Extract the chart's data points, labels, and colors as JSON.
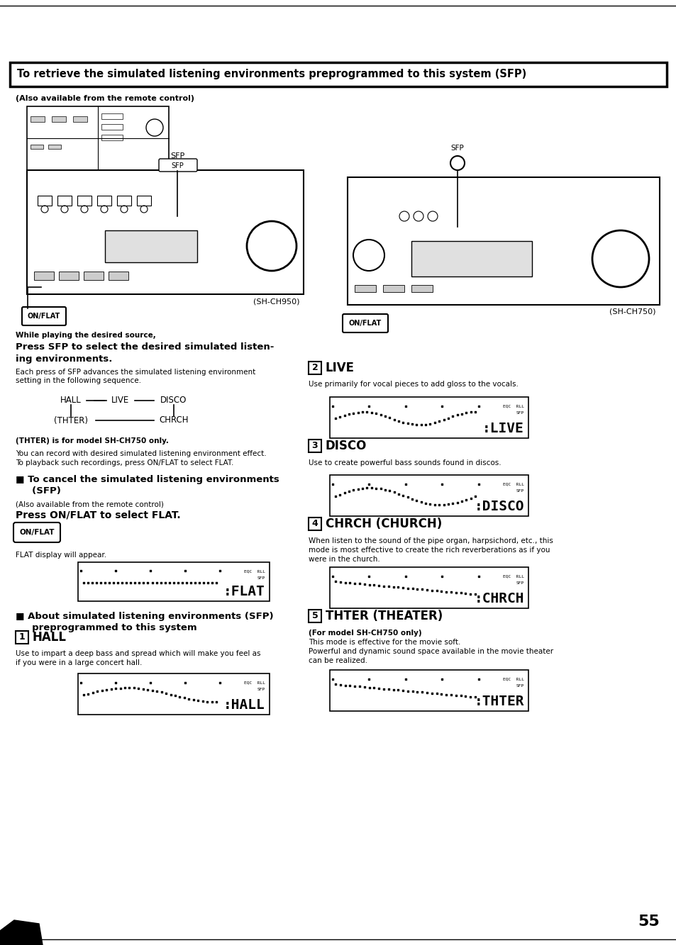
{
  "bg_color": "#ffffff",
  "page_number": "55",
  "header_box_text": "To retrieve the simulated listening environments preprogrammed to this system (SFP)",
  "also_remote": "(Also available from the remote control)",
  "while_playing": "While playing the desired source,",
  "press_sfp_line1": "Press SFP to select the desired simulated listen-",
  "press_sfp_line2": "ing environments.",
  "each_press_text": "Each press of SFP advances the simulated listening environment\nsetting in the following sequence.",
  "thter_note": "(THTER) is for model SH-CH750 only.",
  "record_note1": "You can record with desired simulated listening environment effect.",
  "record_note2": "To playback such recordings, press ON/FLAT to select FLAT.",
  "cancel_bold1": "■ To cancel the simulated listening environments",
  "cancel_bold2": "     (SFP)",
  "also_remote2": "(Also available from the remote control)",
  "press_onflat_bold": "Press ON/FLAT to select FLAT.",
  "flat_display_text": "FLAT display will appear.",
  "about_bold1": "■ About simulated listening environments (SFP)",
  "about_bold2": "     preprogrammed to this system",
  "hall_num": "1",
  "hall_label": "HALL",
  "hall_text1": "Use to impart a deep bass and spread which will make you feel as",
  "hall_text2": "if you were in a large concert hall.",
  "live_num": "2",
  "live_label": "LIVE",
  "live_text": "Use primarily for vocal pieces to add gloss to the vocals.",
  "disco_num": "3",
  "disco_label": "DISCO",
  "disco_text": "Use to create powerful bass sounds found in discos.",
  "chrch_num": "4",
  "chrch_label": "CHRCH (CHURCH)",
  "chrch_text1": "When listen to the sound of the pipe organ, harpsichord, etc., this",
  "chrch_text2": "mode is most effective to create the rich reverberations as if you",
  "chrch_text3": "were in the church.",
  "thter_num": "5",
  "thter_label": "THTER (THEATER)",
  "thter_model": "(For model SH-CH750 only)",
  "thter_text1": "This mode is effective for the movie soft.",
  "thter_text2": "Powerful and dynamic sound space available in the movie theater",
  "thter_text3": "can be realized.",
  "sh950_label": "(SH-CH950)",
  "sh750_label": "(SH-CH750)",
  "sfp_label": "SFP",
  "onflat_label": "ON/FLAT",
  "display_flat": ":FLAT",
  "display_hall": ":HALL",
  "display_live": ":LIVE",
  "display_disco": ":DISCO",
  "display_chrch": ":CHRCH",
  "display_thter": ":THTER"
}
